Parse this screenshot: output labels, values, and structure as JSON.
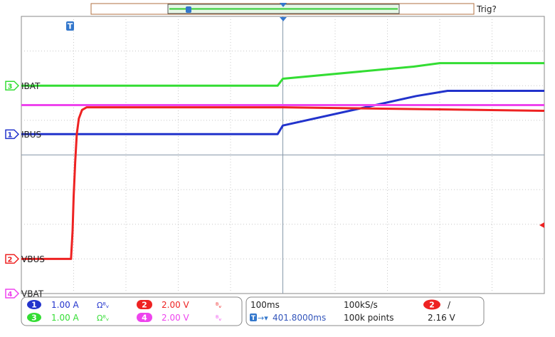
{
  "chart_data": {
    "type": "line",
    "x_units": "ms",
    "time_per_div_ms": 100,
    "horizontal_divs": 10,
    "vertical_divs": 8,
    "trigger_status": "Trig?",
    "trigger_marker": "T",
    "grid": true,
    "series": [
      {
        "channel": "3",
        "name": "IBAT",
        "color": "#33dd33",
        "ground_div": 2.0,
        "x": [
          0,
          490,
          500,
          750,
          800,
          1000
        ],
        "y": [
          0.0,
          0.0,
          0.4,
          1.1,
          1.3,
          1.3
        ]
      },
      {
        "channel": "1",
        "name": "IBUS",
        "color": "#2233cc",
        "ground_div": 3.4,
        "x": [
          0,
          490,
          500,
          755,
          815,
          1000
        ],
        "y": [
          0.0,
          0.0,
          0.5,
          2.2,
          2.5,
          2.5
        ]
      },
      {
        "channel": "4",
        "name": "VBAT",
        "color": "#ee44ee",
        "ground_div": 8.0,
        "x": [
          0,
          1000
        ],
        "y": [
          10.88,
          10.88
        ]
      },
      {
        "channel": "2",
        "name": "VBUS",
        "color": "#ee2222",
        "ground_div": 7.0,
        "x": [
          0,
          95,
          98,
          100,
          103,
          106,
          110,
          116,
          125,
          500,
          1000
        ],
        "y": [
          0.0,
          0.0,
          1.6,
          3.6,
          5.6,
          7.2,
          8.1,
          8.6,
          8.75,
          8.75,
          8.55
        ]
      }
    ],
    "channels": [
      {
        "badge": "1",
        "scale": "1.00 A",
        "color": "#2233cc"
      },
      {
        "badge": "3",
        "scale": "1.00 A",
        "color": "#33dd33"
      },
      {
        "badge": "2",
        "scale": "2.00 V",
        "color": "#ee2222"
      },
      {
        "badge": "4",
        "scale": "2.00 V",
        "color": "#ee44ee"
      }
    ],
    "timebase": {
      "time_per_div": "100ms",
      "sample_rate": "100kS/s",
      "position": "401.8000ms",
      "record_length": "100k points"
    },
    "trigger": {
      "source": "2",
      "slope_symbol": "/",
      "level": "2.16 V"
    }
  },
  "icons": {
    "coupling": "dc-coupling-icon",
    "bandwidth": "bandwidth-limit-icon"
  }
}
